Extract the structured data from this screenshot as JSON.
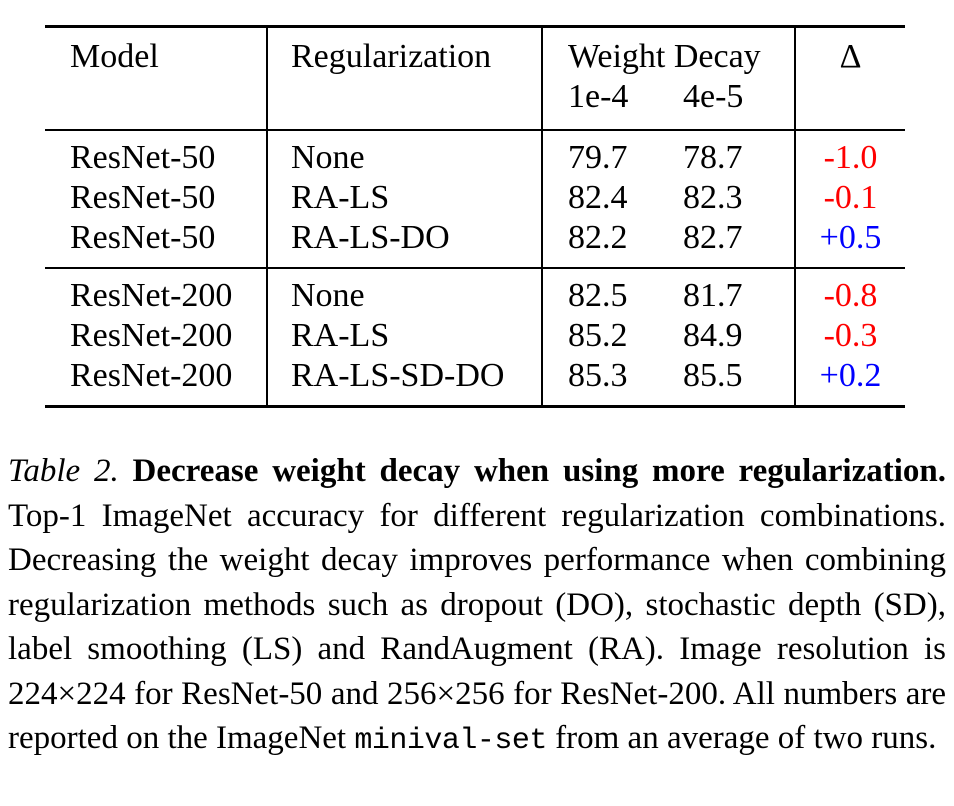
{
  "colors": {
    "negative_delta": "#ff0000",
    "positive_delta": "#0000ff",
    "text": "#000000",
    "rules": "#000000"
  },
  "table": {
    "header": {
      "model": "Model",
      "regularization": "Regularization",
      "weight_decay": "Weight Decay",
      "wd_col1": "1e-4",
      "wd_col2": "4e-5",
      "delta": "Δ"
    },
    "rows": [
      {
        "model": "ResNet-50",
        "regularization": "None",
        "wd1": "79.7",
        "wd2": "78.7",
        "delta": "-1.0",
        "sign": "negative"
      },
      {
        "model": "ResNet-50",
        "regularization": "RA-LS",
        "wd1": "82.4",
        "wd2": "82.3",
        "delta": "-0.1",
        "sign": "negative"
      },
      {
        "model": "ResNet-50",
        "regularization": "RA-LS-DO",
        "wd1": "82.2",
        "wd2": "82.7",
        "delta": "+0.5",
        "sign": "positive"
      },
      {
        "model": "ResNet-200",
        "regularization": "None",
        "wd1": "82.5",
        "wd2": "81.7",
        "delta": "-0.8",
        "sign": "negative"
      },
      {
        "model": "ResNet-200",
        "regularization": "RA-LS",
        "wd1": "85.2",
        "wd2": "84.9",
        "delta": "-0.3",
        "sign": "negative"
      },
      {
        "model": "ResNet-200",
        "regularization": "RA-LS-SD-DO",
        "wd1": "85.3",
        "wd2": "85.5",
        "delta": "+0.2",
        "sign": "positive"
      }
    ]
  },
  "caption": {
    "label": "Table 2.",
    "title_bold": "Decrease weight decay when using more regularization.",
    "body_1": "Top-1 ImageNet accuracy for different regularization combinations. Decreasing the weight decay improves performance when combining regularization methods such as dropout (DO), stochastic depth (SD), label smoothing (LS) and RandAugment (RA). Image resolution is 224×224 for ResNet-50 and 256×256 for ResNet-200. All numbers are reported on the ImageNet",
    "mono": "minival-set",
    "body_2": "from an average of two runs."
  }
}
